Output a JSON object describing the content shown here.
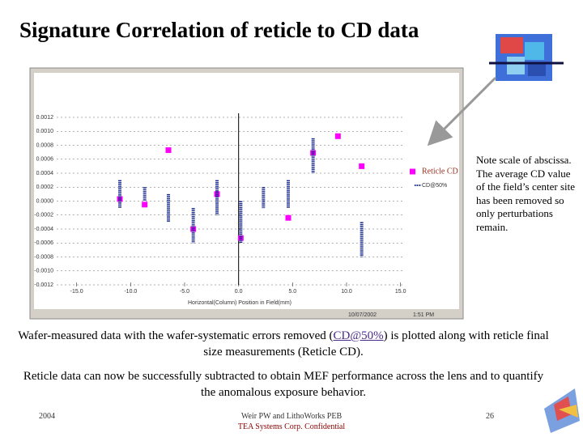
{
  "title": "Signature Correlation of reticle to CD data",
  "note": "Note scale of abscissa. The average CD value of the field’s center site has been removed so only perturbations remain.",
  "caption1": {
    "before": "Wafer-measured data with the wafer-systematic errors removed (",
    "link": "CD@50%",
    "after": ") is plotted along with  reticle final size measurements (Reticle CD)."
  },
  "caption2": "Reticle data can now be successfully subtracted to obtain MEF performance across the lens and to quantify the anomalous exposure behavior.",
  "footer": {
    "year": "2004",
    "authors": "Weir PW and LithoWorks PEB",
    "confidential": "TEA Systems Corp. Confidential",
    "page": "26"
  },
  "chart_data": {
    "type": "scatter",
    "x_label": "Horizontal(Column) Position in Field(mm)",
    "date": "10/07/2002",
    "time": "1:51 PM",
    "xlim": [
      -15.2,
      15.4
    ],
    "ylim": [
      -0.0012,
      0.0012
    ],
    "xticks": [
      {
        "value": -15,
        "label": "-15.0"
      },
      {
        "value": -10,
        "label": "-10.0"
      },
      {
        "value": -5,
        "label": "-5.0"
      },
      {
        "value": 0,
        "label": "0.0"
      },
      {
        "value": 5,
        "label": "5.0"
      },
      {
        "value": 10,
        "label": "10.0"
      },
      {
        "value": 15,
        "label": "15.0"
      }
    ],
    "yticks": [
      {
        "value": 0.0012,
        "label": "0.0012"
      },
      {
        "value": 0.001,
        "label": "0.0010"
      },
      {
        "value": 0.0008,
        "label": "0.0008"
      },
      {
        "value": 0.0006,
        "label": "0.0006"
      },
      {
        "value": 0.0004,
        "label": "0.0004"
      },
      {
        "value": 0.0002,
        "label": "0.0002"
      },
      {
        "value": 0,
        "label": "0.0000"
      },
      {
        "value": -0.0002,
        "label": "-0.0002"
      },
      {
        "value": -0.0004,
        "label": "-0.0004"
      },
      {
        "value": -0.0006,
        "label": "-0.0006"
      },
      {
        "value": -0.0008,
        "label": "-0.0008"
      },
      {
        "value": -0.001,
        "label": "-0.0010"
      },
      {
        "value": -0.0012,
        "label": "-0.0012"
      }
    ],
    "grid": true,
    "series": [
      {
        "name": "Reticle CD",
        "color": "#ff00ff",
        "marker": "square",
        "x": [
          -11.0,
          -8.7,
          -6.5,
          -4.2,
          -2.0,
          0.2,
          4.6,
          6.9,
          9.2,
          11.4
        ],
        "values": [
          3e-05,
          -5e-05,
          0.00073,
          -0.0004,
          0.0001,
          -0.00053,
          -0.00024,
          0.00069,
          0.00093,
          0.0005
        ]
      },
      {
        "name": "CD@50%",
        "color": "#1a2a8a",
        "marker": "range",
        "x": [
          -11.0,
          -8.7,
          -6.5,
          -4.2,
          -2.0,
          0.2,
          2.3,
          4.6,
          6.9,
          11.4
        ],
        "low": [
          -0.0001,
          0.0,
          -0.0003,
          -0.0006,
          -0.0002,
          -0.0006,
          -0.0001,
          -0.0001,
          0.0004,
          -0.0008
        ],
        "high": [
          0.0003,
          0.0002,
          0.0001,
          -0.0001,
          0.0003,
          0.0,
          0.0002,
          0.0003,
          0.0009,
          -0.0003
        ]
      }
    ]
  }
}
